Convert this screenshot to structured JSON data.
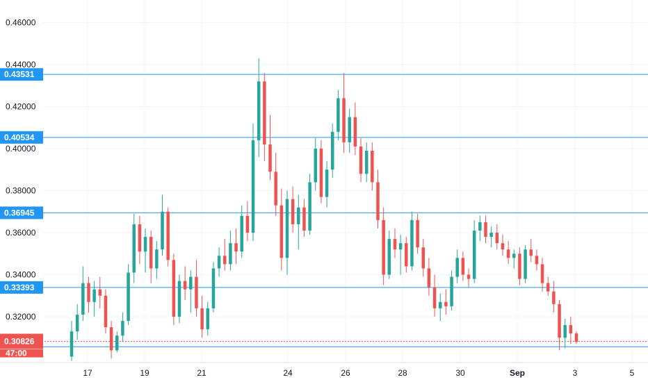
{
  "chart_data": {
    "type": "candlestick",
    "title": "",
    "xlabel": "",
    "ylabel": "",
    "ylim": [
      0.299,
      0.4665
    ],
    "x_ticks": [
      "17",
      "19",
      "21",
      "24",
      "26",
      "28",
      "30",
      "Sep",
      "3",
      "5"
    ],
    "y_ticks": [
      "0.46000",
      "0.44000",
      "0.42000",
      "0.40000",
      "0.38000",
      "0.36000",
      "0.34000",
      "0.32000"
    ],
    "grid": true,
    "horizontal_levels": [
      {
        "label": "0.43531",
        "value": 0.43531
      },
      {
        "label": "0.40534",
        "value": 0.40534
      },
      {
        "label": "0.36945",
        "value": 0.36945
      },
      {
        "label": "0.33393",
        "value": 0.33393
      },
      {
        "value": 0.3057
      }
    ],
    "last_price": {
      "label": "0.30826",
      "value": 0.30826
    },
    "countdown": "47:00",
    "series": [
      {
        "name": "",
        "values": [
          [
            0.301,
            0.318,
            0.299,
            0.313
          ],
          [
            0.313,
            0.326,
            0.309,
            0.321
          ],
          [
            0.321,
            0.344,
            0.318,
            0.336
          ],
          [
            0.336,
            0.339,
            0.322,
            0.327
          ],
          [
            0.327,
            0.337,
            0.32,
            0.333
          ],
          [
            0.333,
            0.339,
            0.324,
            0.33
          ],
          [
            0.33,
            0.333,
            0.312,
            0.315
          ],
          [
            0.315,
            0.318,
            0.3,
            0.304
          ],
          [
            0.304,
            0.313,
            0.303,
            0.311
          ],
          [
            0.311,
            0.322,
            0.308,
            0.318
          ],
          [
            0.318,
            0.345,
            0.316,
            0.341
          ],
          [
            0.341,
            0.369,
            0.336,
            0.364
          ],
          [
            0.364,
            0.368,
            0.345,
            0.351
          ],
          [
            0.351,
            0.362,
            0.341,
            0.358
          ],
          [
            0.358,
            0.361,
            0.336,
            0.343
          ],
          [
            0.343,
            0.356,
            0.338,
            0.352
          ],
          [
            0.352,
            0.378,
            0.349,
            0.37
          ],
          [
            0.37,
            0.372,
            0.344,
            0.347
          ],
          [
            0.347,
            0.35,
            0.316,
            0.32
          ],
          [
            0.32,
            0.34,
            0.317,
            0.337
          ],
          [
            0.337,
            0.344,
            0.328,
            0.333
          ],
          [
            0.333,
            0.342,
            0.322,
            0.339
          ],
          [
            0.339,
            0.347,
            0.32,
            0.324
          ],
          [
            0.324,
            0.33,
            0.31,
            0.314
          ],
          [
            0.314,
            0.327,
            0.311,
            0.324
          ],
          [
            0.324,
            0.346,
            0.322,
            0.343
          ],
          [
            0.343,
            0.353,
            0.339,
            0.349
          ],
          [
            0.349,
            0.357,
            0.342,
            0.345
          ],
          [
            0.345,
            0.361,
            0.342,
            0.355
          ],
          [
            0.355,
            0.362,
            0.345,
            0.351
          ],
          [
            0.351,
            0.373,
            0.348,
            0.368
          ],
          [
            0.368,
            0.375,
            0.356,
            0.36
          ],
          [
            0.36,
            0.412,
            0.356,
            0.404
          ],
          [
            0.404,
            0.443,
            0.396,
            0.432
          ],
          [
            0.432,
            0.436,
            0.394,
            0.402
          ],
          [
            0.402,
            0.416,
            0.385,
            0.389
          ],
          [
            0.389,
            0.398,
            0.368,
            0.373
          ],
          [
            0.373,
            0.381,
            0.342,
            0.348
          ],
          [
            0.348,
            0.38,
            0.34,
            0.376
          ],
          [
            0.376,
            0.382,
            0.36,
            0.364
          ],
          [
            0.364,
            0.378,
            0.352,
            0.372
          ],
          [
            0.372,
            0.376,
            0.358,
            0.361
          ],
          [
            0.361,
            0.388,
            0.359,
            0.384
          ],
          [
            0.384,
            0.405,
            0.38,
            0.4
          ],
          [
            0.4,
            0.404,
            0.374,
            0.377
          ],
          [
            0.377,
            0.394,
            0.372,
            0.39
          ],
          [
            0.39,
            0.412,
            0.386,
            0.408
          ],
          [
            0.408,
            0.428,
            0.404,
            0.424
          ],
          [
            0.424,
            0.436,
            0.398,
            0.403
          ],
          [
            0.403,
            0.419,
            0.398,
            0.415
          ],
          [
            0.415,
            0.422,
            0.397,
            0.401
          ],
          [
            0.401,
            0.405,
            0.384,
            0.388
          ],
          [
            0.388,
            0.403,
            0.384,
            0.399
          ],
          [
            0.399,
            0.403,
            0.38,
            0.384
          ],
          [
            0.384,
            0.39,
            0.362,
            0.366
          ],
          [
            0.366,
            0.372,
            0.335,
            0.34
          ],
          [
            0.34,
            0.361,
            0.338,
            0.357
          ],
          [
            0.357,
            0.362,
            0.348,
            0.352
          ],
          [
            0.352,
            0.359,
            0.34,
            0.355
          ],
          [
            0.355,
            0.358,
            0.341,
            0.344
          ],
          [
            0.344,
            0.37,
            0.342,
            0.366
          ],
          [
            0.366,
            0.369,
            0.35,
            0.353
          ],
          [
            0.353,
            0.357,
            0.339,
            0.343
          ],
          [
            0.343,
            0.348,
            0.33,
            0.334
          ],
          [
            0.334,
            0.34,
            0.32,
            0.324
          ],
          [
            0.324,
            0.331,
            0.318,
            0.327
          ],
          [
            0.327,
            0.333,
            0.321,
            0.325
          ],
          [
            0.325,
            0.342,
            0.323,
            0.339
          ],
          [
            0.339,
            0.352,
            0.336,
            0.348
          ],
          [
            0.348,
            0.351,
            0.337,
            0.34
          ],
          [
            0.34,
            0.343,
            0.334,
            0.338
          ],
          [
            0.338,
            0.366,
            0.336,
            0.361
          ],
          [
            0.361,
            0.368,
            0.356,
            0.365
          ],
          [
            0.365,
            0.368,
            0.355,
            0.358
          ],
          [
            0.358,
            0.363,
            0.353,
            0.36
          ],
          [
            0.36,
            0.364,
            0.352,
            0.355
          ],
          [
            0.355,
            0.359,
            0.349,
            0.352
          ],
          [
            0.352,
            0.356,
            0.345,
            0.348
          ],
          [
            0.348,
            0.352,
            0.343,
            0.35
          ],
          [
            0.35,
            0.353,
            0.335,
            0.338
          ],
          [
            0.338,
            0.354,
            0.336,
            0.352
          ],
          [
            0.352,
            0.357,
            0.346,
            0.349
          ],
          [
            0.349,
            0.352,
            0.342,
            0.345
          ],
          [
            0.345,
            0.348,
            0.332,
            0.336
          ],
          [
            0.336,
            0.339,
            0.33,
            0.332
          ],
          [
            0.332,
            0.337,
            0.322,
            0.326
          ],
          [
            0.326,
            0.328,
            0.304,
            0.31
          ],
          [
            0.31,
            0.319,
            0.305,
            0.316
          ],
          [
            0.316,
            0.32,
            0.307,
            0.312
          ],
          [
            0.312,
            0.313,
            0.307,
            0.308
          ]
        ]
      }
    ],
    "colors": {
      "up": "#26a69a",
      "down": "#ef5350",
      "level": "#2196f3",
      "grid": "#f0f3fa"
    }
  }
}
